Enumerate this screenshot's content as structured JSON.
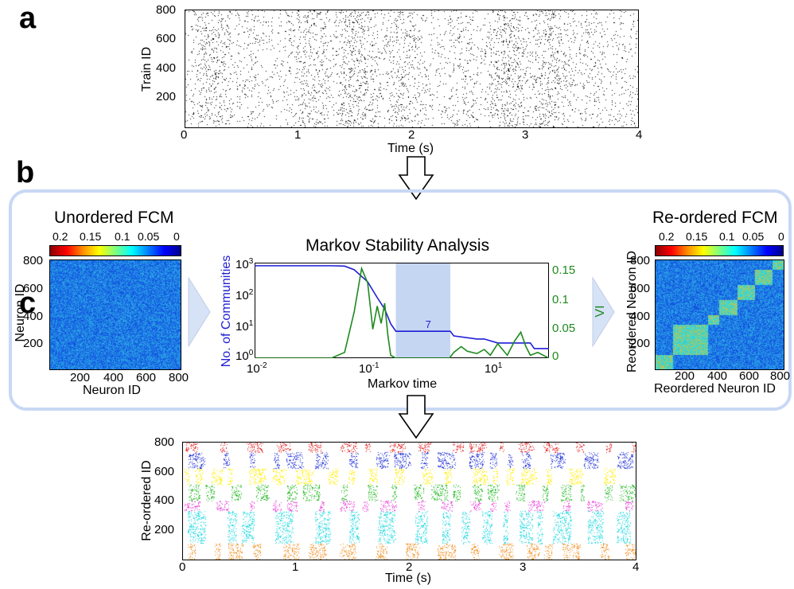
{
  "panel_a": {
    "letter": "a",
    "ylabel": "Train ID",
    "xlabel": "Time (s)",
    "yticks": [
      "800",
      "600",
      "400",
      "200"
    ],
    "xticks": [
      "0",
      "1",
      "2",
      "3",
      "4"
    ]
  },
  "panel_b": {
    "letter": "b",
    "left": {
      "title": "Unordered FCM",
      "colorbar_ticks": [
        "0.2",
        "0.15",
        "0.1",
        "0.05",
        "0"
      ],
      "yticks": [
        "800",
        "600",
        "400",
        "200"
      ],
      "xticks": [
        "200",
        "400",
        "600",
        "800"
      ],
      "ylabel": "Neuron ID",
      "xlabel": "Neuron ID"
    },
    "center": {
      "title": "Markov Stability Analysis",
      "ylabel_left": "No. of Communities",
      "ylabel_right": "VI",
      "xlabel": "Markov time",
      "annotation": "7",
      "y_left_ticks": [
        "10",
        "10",
        "10",
        "10"
      ],
      "y_left_exp": [
        "3",
        "2",
        "1",
        "0"
      ],
      "x_ticks": [
        "10",
        "10",
        "10"
      ],
      "x_exp": [
        "-2",
        "-1",
        "1"
      ],
      "y_right_ticks": [
        "0.15",
        "0.1",
        "0.05",
        "0"
      ],
      "colors": {
        "communities": "#1f1fd6",
        "vi": "#1e8a1e",
        "highlight": "#c5d6f3"
      }
    },
    "right": {
      "title": "Re-ordered FCM",
      "colorbar_ticks": [
        "0.2",
        "0.15",
        "0.1",
        "0.05",
        "0"
      ],
      "yticks": [
        "800",
        "600",
        "400",
        "200"
      ],
      "xticks": [
        "200",
        "400",
        "600",
        "800"
      ],
      "ylabel": "Reordered Neuron ID",
      "xlabel": "Reordered Neuron ID"
    }
  },
  "panel_c": {
    "letter": "c",
    "ylabel": "Re-ordered ID",
    "xlabel": "Time (s)",
    "yticks": [
      "800",
      "600",
      "400",
      "200"
    ],
    "xticks": [
      "0",
      "1",
      "2",
      "3",
      "4"
    ],
    "group_colors": [
      "#e31a1c",
      "#1f2fd6",
      "#ffee00",
      "#22b822",
      "#e83fd9",
      "#22d8e0",
      "#f08c1e"
    ]
  },
  "chart_data": [
    {
      "type": "scatter",
      "name": "raster",
      "xlabel": "Time (s)",
      "ylabel": "Train ID",
      "xlim": [
        0,
        4
      ],
      "ylim": [
        0,
        800
      ]
    },
    {
      "type": "heatmap",
      "title": "Unordered FCM",
      "xlabel": "Neuron ID",
      "ylabel": "Neuron ID",
      "clim": [
        0,
        0.2
      ]
    },
    {
      "type": "line",
      "title": "Markov Stability Analysis",
      "xlabel": "Markov time",
      "x_scale": "log",
      "xlim": [
        0.01,
        70
      ],
      "highlight_x": [
        0.7,
        3.6
      ],
      "series": [
        {
          "name": "No. of Communities",
          "axis": "left",
          "scale": "log",
          "x": [
            0.01,
            0.05,
            0.1,
            0.15,
            0.2,
            0.3,
            0.4,
            0.5,
            0.6,
            0.7,
            1.5,
            3.6,
            4,
            8,
            10,
            15,
            20,
            40,
            45,
            70
          ],
          "y": [
            800,
            800,
            800,
            780,
            600,
            250,
            80,
            35,
            12,
            7,
            7,
            7,
            5,
            4,
            4,
            3,
            3,
            3,
            2,
            2
          ]
        },
        {
          "name": "VI",
          "axis": "right",
          "x": [
            0.01,
            0.1,
            0.15,
            0.2,
            0.25,
            0.3,
            0.35,
            0.4,
            0.45,
            0.5,
            0.55,
            0.6,
            0.7,
            1,
            2,
            3.5,
            4,
            5,
            6,
            8,
            10,
            12,
            15,
            20,
            25,
            30,
            35,
            40,
            50,
            70
          ],
          "y": [
            0,
            0,
            0.01,
            0.08,
            0.155,
            0.13,
            0.05,
            0.09,
            0.06,
            0.095,
            0.04,
            0.005,
            0,
            0,
            0,
            0,
            0.01,
            0.02,
            0.012,
            0.008,
            0.015,
            0.005,
            0.025,
            0.005,
            0.03,
            0.045,
            0.02,
            0.005,
            0.01,
            0
          ]
        }
      ]
    },
    {
      "type": "heatmap",
      "title": "Re-ordered FCM",
      "xlabel": "Reordered Neuron ID",
      "ylabel": "Reordered Neuron ID",
      "clim": [
        0,
        0.2
      ],
      "blocks": [
        [
          0,
          110
        ],
        [
          110,
          330
        ],
        [
          330,
          400
        ],
        [
          400,
          510
        ],
        [
          510,
          620
        ],
        [
          620,
          730
        ],
        [
          730,
          800
        ]
      ]
    },
    {
      "type": "scatter",
      "name": "reordered raster",
      "xlabel": "Time (s)",
      "ylabel": "Re-ordered ID",
      "xlim": [
        0,
        4
      ],
      "ylim": [
        0,
        800
      ]
    }
  ]
}
